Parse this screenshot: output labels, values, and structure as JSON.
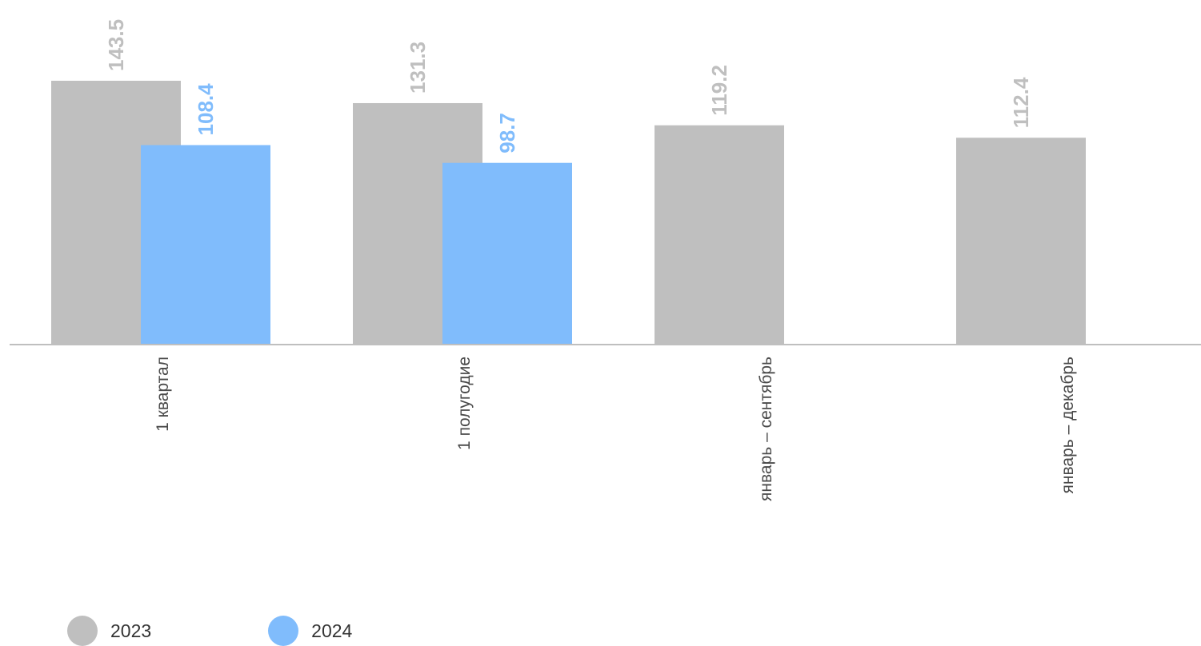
{
  "chart_data": {
    "type": "bar",
    "categories": [
      "1 квартал",
      "1 полугодие",
      "январь – сентябрь",
      "январь – декабрь"
    ],
    "series": [
      {
        "name": "2023",
        "values": [
          143.5,
          131.3,
          119.2,
          112.4
        ],
        "color": "#bfbfbf",
        "label_color": "#bfbfbf"
      },
      {
        "name": "2024",
        "values": [
          108.4,
          98.7,
          null,
          null
        ],
        "color": "#80bcfc",
        "label_color": "#80bcfc"
      }
    ],
    "ylim": [
      0,
      143.5
    ],
    "grid": false,
    "legend_position": "bottom-left",
    "tick_label_rotation": "vertical",
    "value_label_rotation": "vertical",
    "axis_color": "#bfbfbf"
  }
}
